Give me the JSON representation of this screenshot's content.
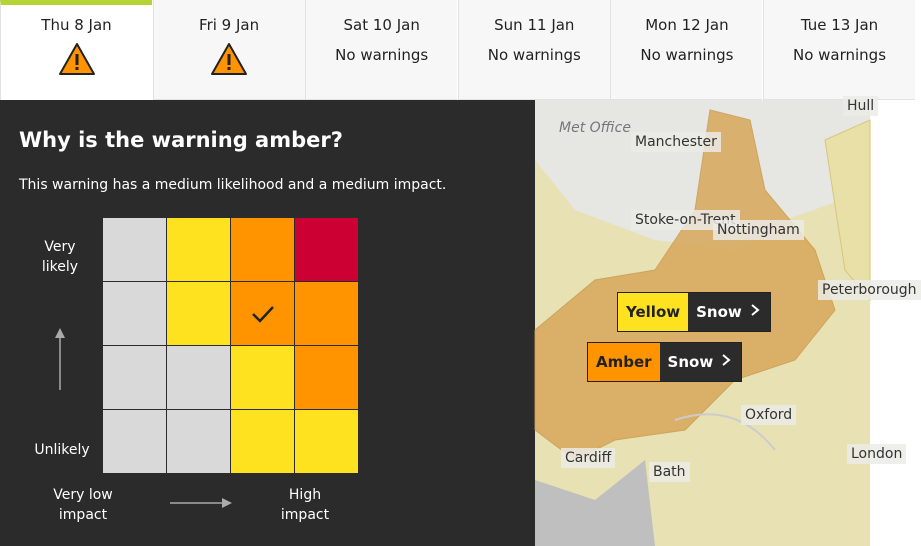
{
  "tabs": [
    {
      "day": "Thu 8 Jan",
      "warning": true
    },
    {
      "day": "Fri 9 Jan",
      "warning": true
    },
    {
      "day": "Sat 10 Jan",
      "status": "No warnings"
    },
    {
      "day": "Sun 11 Jan",
      "status": "No warnings"
    },
    {
      "day": "Mon 12 Jan",
      "status": "No warnings"
    },
    {
      "day": "Tue 13 Jan",
      "status": "No warnings"
    }
  ],
  "panel": {
    "title": "Why is the warning amber?",
    "description": "This warning has a medium likelihood and a medium impact.",
    "y_axis": {
      "top": "Very likely",
      "bottom": "Unlikely"
    },
    "x_axis": {
      "left": "Very low impact",
      "right": "High impact"
    },
    "matrix": {
      "colors": [
        [
          "#d9d9d9",
          "#ffe21f",
          "#ff9400",
          "#cc0033"
        ],
        [
          "#d9d9d9",
          "#ffe21f",
          "#ff9400",
          "#ff9400"
        ],
        [
          "#d9d9d9",
          "#d9d9d9",
          "#ffe21f",
          "#ff9400"
        ],
        [
          "#d9d9d9",
          "#d9d9d9",
          "#ffe21f",
          "#ffe21f"
        ]
      ],
      "selected": [
        1,
        2
      ]
    }
  },
  "map": {
    "provider": "Met Office",
    "places": [
      "Manchester",
      "Stoke-on-Trent",
      "Nottingham",
      "Peterborough",
      "Hull",
      "Oxford",
      "Cardiff",
      "Bath",
      "London"
    ],
    "warnings": [
      {
        "level": "Yellow",
        "type": "Snow",
        "color": "#ffe21f"
      },
      {
        "level": "Amber",
        "type": "Snow",
        "color": "#ff9400"
      }
    ]
  }
}
